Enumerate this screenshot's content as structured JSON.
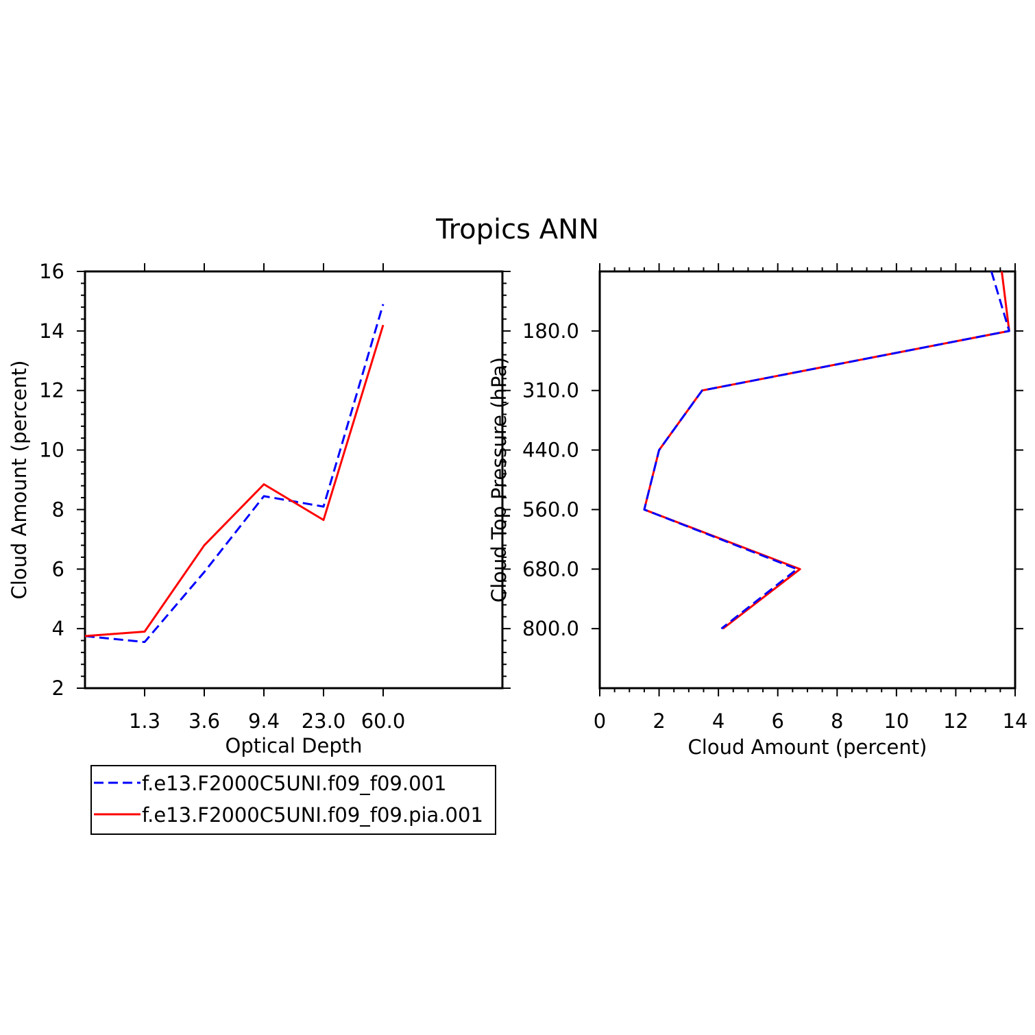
{
  "title": "Tropics ANN",
  "colors": {
    "series1": "#0000ff",
    "series2": "#ff0000",
    "axis": "#000000"
  },
  "legend": {
    "placement": "below-left",
    "entries": [
      {
        "label": "f.e13.F2000C5UNI.f09_f09.001",
        "color": "#0000ff",
        "style": "dashed"
      },
      {
        "label": "f.e13.F2000C5UNI.f09_f09.pia.001",
        "color": "#ff0000",
        "style": "solid"
      }
    ]
  },
  "chart_data": [
    {
      "type": "line",
      "orientation": "horizontal",
      "xlabel": "Optical Depth",
      "ylabel": "Cloud Amount (percent)",
      "x_tick_labels": [
        "1.3",
        "3.6",
        "9.4",
        "23.0",
        "60.0"
      ],
      "x_bins": 7,
      "ylim": [
        2,
        16
      ],
      "y_ticks": [
        2,
        4,
        6,
        8,
        10,
        12,
        14,
        16
      ],
      "grid": false,
      "series": [
        {
          "name": "f.e13.F2000C5UNI.f09_f09.001",
          "values": [
            3.75,
            3.55,
            5.9,
            8.45,
            8.1,
            14.9
          ]
        },
        {
          "name": "f.e13.F2000C5UNI.f09_f09.pia.001",
          "values": [
            3.75,
            3.9,
            6.8,
            8.85,
            7.65,
            14.2
          ]
        }
      ]
    },
    {
      "type": "line",
      "orientation": "vertical",
      "xlabel": "Cloud Amount (percent)",
      "ylabel": "Cloud Top Pressure (hPa)",
      "xlim": [
        0,
        14
      ],
      "x_ticks": [
        0,
        2,
        4,
        6,
        8,
        10,
        12,
        14
      ],
      "y_tick_labels": [
        "180.0",
        "310.0",
        "440.0",
        "560.0",
        "680.0",
        "800.0"
      ],
      "y_bins": 7,
      "y_inverted": true,
      "grid": false,
      "series": [
        {
          "name": "f.e13.F2000C5UNI.f09_f09.001",
          "values": [
            13.8,
            3.45,
            2.0,
            1.5,
            6.65,
            4.1
          ]
        },
        {
          "name": "f.e13.F2000C5UNI.f09_f09.pia.001",
          "values": [
            13.8,
            3.45,
            2.0,
            1.5,
            6.75,
            4.15
          ]
        }
      ]
    }
  ]
}
